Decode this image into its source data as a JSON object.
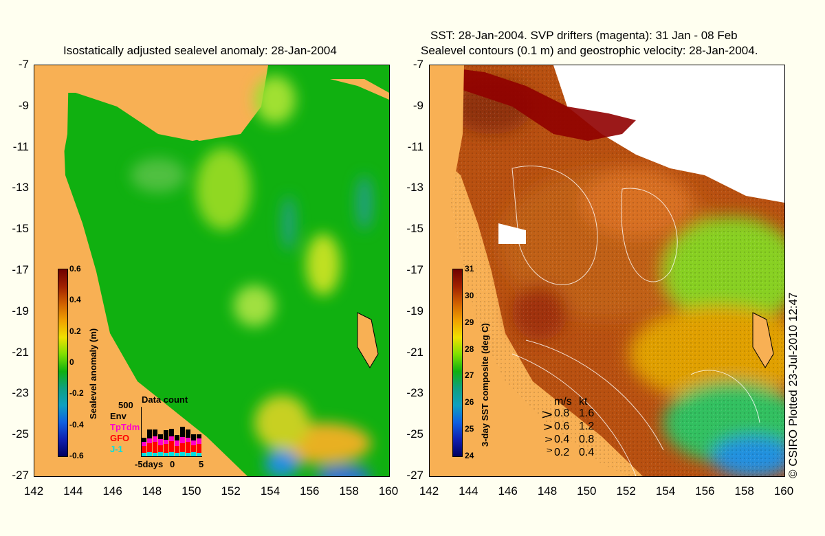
{
  "left_panel": {
    "title": "Isostatically adjusted sealevel anomaly: 28-Jan-2004",
    "colorbar": {
      "title": "Sealevel anomaly (m)",
      "ticks": [
        "0.6",
        "0.4",
        "0.2",
        "0",
        "-0.2",
        "-0.4",
        "-0.6"
      ]
    },
    "data_count": {
      "title": "Data count",
      "max_label": "500",
      "legend": [
        {
          "label": "Env",
          "color": "#000000"
        },
        {
          "label": "TpTdm",
          "color": "#ff00c8"
        },
        {
          "label": "GFO",
          "color": "#ff0000"
        },
        {
          "label": "J-1",
          "color": "#00e0e0"
        }
      ],
      "xaxis": [
        "-5days",
        "0",
        "5"
      ]
    }
  },
  "right_panel": {
    "title_line1": "SST: 28-Jan-2004. SVP drifters (magenta): 31 Jan - 08 Feb",
    "title_line2": "Sealevel contours (0.1 m) and geostrophic velocity: 28-Jan-2004.",
    "colorbar": {
      "title": "3-day SST composite (deg C)",
      "ticks": [
        "31",
        "30",
        "29",
        "28",
        "27",
        "26",
        "25",
        "24"
      ]
    },
    "velocity_legend": {
      "header_ms": "m/s",
      "header_kt": "kt",
      "rows": [
        {
          "ms": "0.8",
          "kt": "1.6"
        },
        {
          "ms": "0.6",
          "kt": "1.2"
        },
        {
          "ms": "0.4",
          "kt": "0.8"
        },
        {
          "ms": "0.2",
          "kt": "0.4"
        }
      ]
    }
  },
  "axes": {
    "y_ticks": [
      "-7",
      "-9",
      "-11",
      "-13",
      "-15",
      "-17",
      "-19",
      "-21",
      "-23",
      "-25",
      "-27"
    ],
    "x_ticks": [
      "142",
      "144",
      "146",
      "148",
      "150",
      "152",
      "154",
      "156",
      "158",
      "160"
    ]
  },
  "credit": "© CSIRO Plotted 23-Jul-2010 12:47",
  "colors": {
    "land": "#f8b054",
    "ocean_green": "#10b010",
    "background": "#fffff0"
  }
}
